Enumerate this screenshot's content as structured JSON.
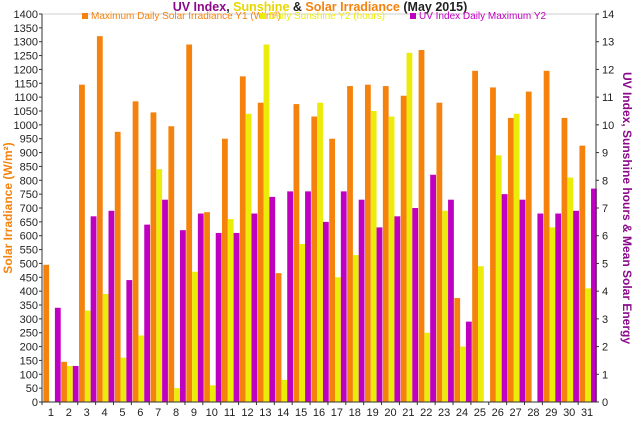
{
  "chart_data": {
    "type": "bar",
    "title_parts": [
      {
        "text": "UV Index",
        "color": "#8b0a8b"
      },
      {
        "text": ", ",
        "color": "#222222"
      },
      {
        "text": "Sunshine",
        "color": "#e6d800"
      },
      {
        "text": " & ",
        "color": "#222222"
      },
      {
        "text": "Solar Irradiance",
        "color": "#f5820d"
      },
      {
        "text": " (May 2015)",
        "color": "#222222"
      }
    ],
    "ylabel_left": "Solar Irradiance (W/m²)",
    "ylabel_right": "UV Index, Sunshine hours & Mean Solar Energy",
    "categories": [
      "1",
      "2",
      "3",
      "4",
      "5",
      "6",
      "7",
      "8",
      "9",
      "10",
      "11",
      "12",
      "13",
      "14",
      "15",
      "16",
      "17",
      "18",
      "19",
      "20",
      "21",
      "22",
      "23",
      "24",
      "25",
      "26",
      "27",
      "28",
      "29",
      "30",
      "31"
    ],
    "y1_ticks": [
      "0",
      "50",
      "100",
      "150",
      "200",
      "250",
      "300",
      "350",
      "400",
      "450",
      "500",
      "550",
      "600",
      "650",
      "700",
      "750",
      "800",
      "850",
      "900",
      "950",
      "1000",
      "1050",
      "1100",
      "1150",
      "1200",
      "1250",
      "1300",
      "1350",
      "1400"
    ],
    "y2_ticks": [
      "0",
      "1",
      "2",
      "3",
      "4",
      "5",
      "6",
      "7",
      "8",
      "9",
      "10",
      "11",
      "12",
      "13",
      "14"
    ],
    "y1_range": [
      0,
      1400
    ],
    "y2_range": [
      0,
      14
    ],
    "grid": false,
    "legend_position": "top",
    "series": [
      {
        "name": "Maximum Daily Solar Irradiance Y1 (W/m²)",
        "axis": "left",
        "color": "#f5820d",
        "values": [
          495,
          145,
          1145,
          1320,
          975,
          1085,
          1045,
          995,
          1290,
          685,
          950,
          1175,
          1080,
          465,
          1075,
          1030,
          950,
          1140,
          1145,
          1140,
          1105,
          1270,
          1080,
          375,
          1195,
          1135,
          1025,
          1120,
          1195,
          1025,
          925
        ]
      },
      {
        "name": "Daily Sunshine Y2 (hours)",
        "axis": "right",
        "color": "#ecec0a",
        "values": [
          0,
          1.3,
          3.3,
          3.9,
          1.6,
          2.4,
          8.4,
          0.5,
          4.7,
          0.6,
          6.6,
          10.4,
          12.9,
          0.8,
          5.7,
          10.8,
          4.5,
          5.3,
          10.5,
          10.3,
          12.6,
          2.5,
          6.9,
          2.0,
          4.9,
          8.9,
          10.4,
          0,
          6.3,
          8.1,
          4.1
        ]
      },
      {
        "name": "UV Index Daily Maximum Y2",
        "axis": "right",
        "color": "#c000c0",
        "values": [
          3.4,
          1.3,
          6.7,
          6.9,
          4.4,
          6.4,
          7.3,
          6.2,
          6.8,
          6.1,
          6.1,
          6.8,
          7.4,
          7.6,
          7.6,
          6.5,
          7.6,
          7.3,
          6.3,
          6.7,
          7.0,
          8.2,
          7.3,
          2.9,
          0,
          7.5,
          7.3,
          6.8,
          6.8,
          6.9,
          7.7
        ]
      }
    ]
  }
}
